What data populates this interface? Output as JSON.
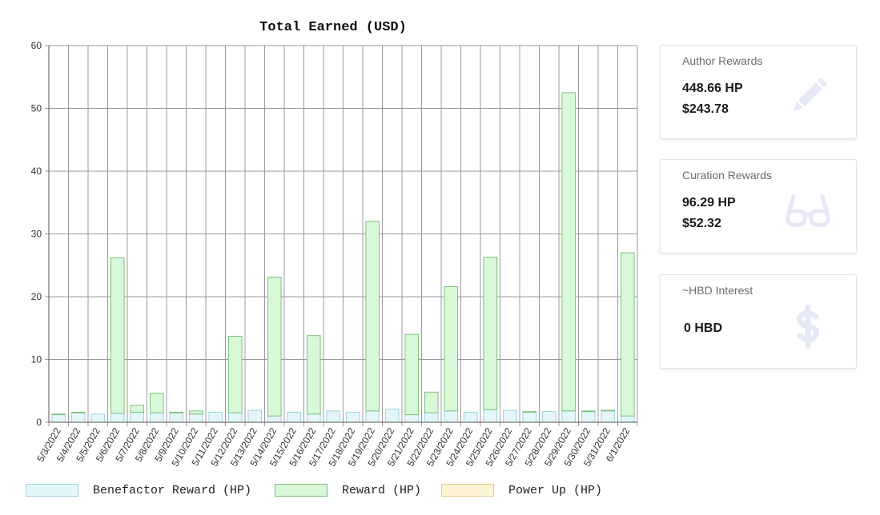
{
  "chart_data": {
    "type": "bar",
    "stacked": true,
    "title": "Total Earned (USD)",
    "xlabel": "",
    "ylabel": "",
    "ylim": [
      0,
      60
    ],
    "yticks": [
      0,
      10,
      20,
      30,
      40,
      50,
      60
    ],
    "grid": true,
    "legend_position": "bottom",
    "categories": [
      "5/3/2022",
      "5/4/2022",
      "5/5/2022",
      "5/6/2022",
      "5/7/2022",
      "5/8/2022",
      "5/9/2022",
      "5/10/2022",
      "5/11/2022",
      "5/12/2022",
      "5/13/2022",
      "5/14/2022",
      "5/15/2022",
      "5/16/2022",
      "5/17/2022",
      "5/18/2022",
      "5/19/2022",
      "5/20/2022",
      "5/21/2022",
      "5/22/2022",
      "5/23/2022",
      "5/24/2022",
      "5/25/2022",
      "5/26/2022",
      "5/27/2022",
      "5/28/2022",
      "5/29/2022",
      "5/30/2022",
      "5/31/2022",
      "6/1/2022"
    ],
    "series": [
      {
        "name": "Benefactor Reward (HP)",
        "fill": "#e3f6fa",
        "stroke": "#9fd1dc",
        "values": [
          1.2,
          1.5,
          1.3,
          1.4,
          1.6,
          1.5,
          1.5,
          1.3,
          1.6,
          1.5,
          1.9,
          1.0,
          1.6,
          1.3,
          1.8,
          1.6,
          1.8,
          2.1,
          1.2,
          1.5,
          1.8,
          1.6,
          2.0,
          1.9,
          1.6,
          1.7,
          1.8,
          1.7,
          1.8,
          1.0
        ]
      },
      {
        "name": "Reward (HP)",
        "fill": "#d9f7d9",
        "stroke": "#7cc07c",
        "values": [
          0.1,
          0.1,
          0.0,
          24.8,
          1.1,
          3.1,
          0.1,
          0.5,
          0.0,
          12.2,
          0.0,
          22.1,
          0.0,
          12.5,
          0.0,
          0.0,
          30.2,
          0.0,
          12.8,
          3.3,
          19.8,
          0.0,
          24.3,
          0.0,
          0.1,
          0.0,
          50.7,
          0.1,
          0.1,
          26.0
        ]
      },
      {
        "name": "Power Up (HP)",
        "fill": "#fcf3d2",
        "stroke": "#e0cb8a",
        "values": [
          0,
          0,
          0,
          0,
          0,
          0,
          0,
          0,
          0,
          0,
          0,
          0,
          0,
          0,
          0,
          0,
          0,
          0,
          0,
          0,
          0,
          0,
          0,
          0,
          0,
          0,
          0,
          0,
          0,
          0
        ]
      }
    ]
  },
  "cards": {
    "author": {
      "title": "Author Rewards",
      "hp": "448.66 HP",
      "usd": "$243.78",
      "icon": "pencil-icon"
    },
    "curation": {
      "title": "Curation Rewards",
      "hp": "96.29 HP",
      "usd": "$52.32",
      "icon": "glasses-icon"
    },
    "interest": {
      "title": "~HBD Interest",
      "hbd": "0 HBD",
      "icon": "dollar-icon"
    }
  },
  "colors": {
    "icon": "#e6e8f8",
    "grid": "#999999"
  }
}
